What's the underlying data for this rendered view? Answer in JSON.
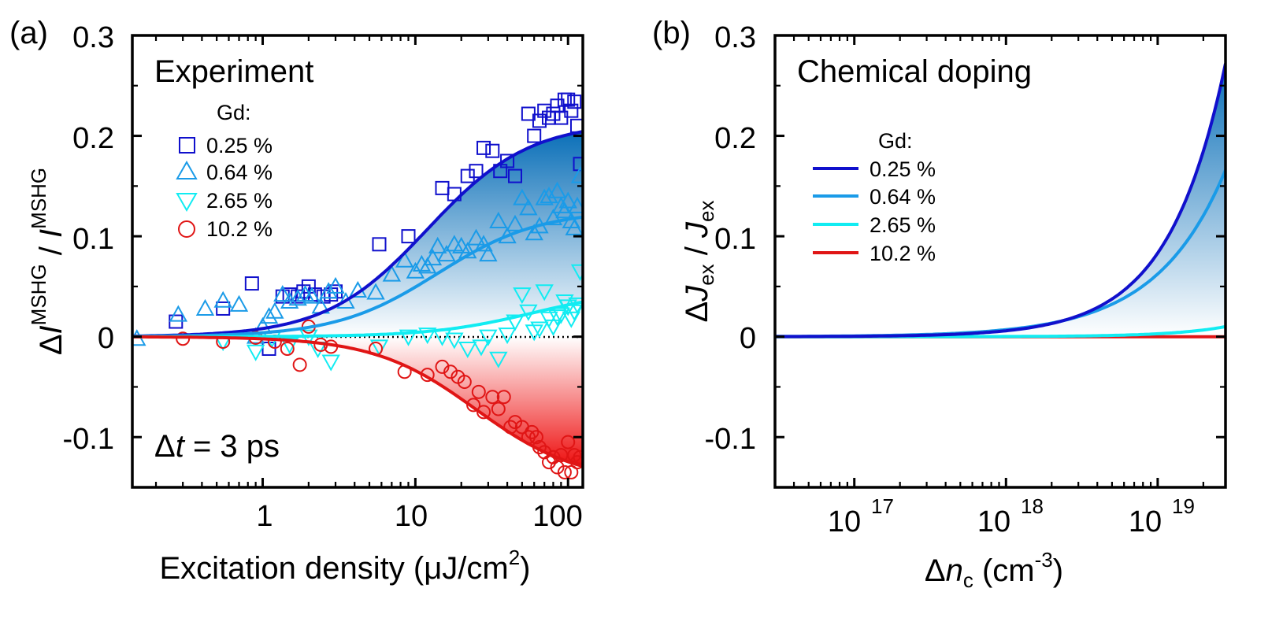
{
  "colors": {
    "gd025": "#1010cc",
    "gd064": "#1a9be8",
    "gd265": "#11ecf2",
    "gd102": "#e01515"
  },
  "chart_data": [
    {
      "panel": "(a)",
      "type": "scatter",
      "title": "Experiment",
      "annotation": "Δt = 3 ps",
      "xlabel": "Excitation density (μJ/cm²)",
      "ylabel": "ΔI MSHG / I MSHG",
      "xscale": "log",
      "xlim": [
        0.14,
        125
      ],
      "ylim": [
        -0.15,
        0.3
      ],
      "xticks": [
        1,
        10,
        100
      ],
      "xtick_labels": [
        "1",
        "10",
        "100"
      ],
      "yticks": [
        -0.1,
        0,
        0.1,
        0.2,
        0.3
      ],
      "ytick_labels": [
        "-0.1",
        "0",
        "0.1",
        "0.2",
        "0.3"
      ],
      "legend_title": "Gd:",
      "legend_position": "top-left",
      "series": [
        {
          "name": "0.25 %",
          "marker": "square",
          "fit_final": 0.214,
          "fit_x0": 12,
          "x": [
            0.27,
            0.55,
            0.85,
            1.1,
            1.35,
            1.5,
            1.7,
            1.85,
            2.0,
            2.2,
            2.5,
            2.8,
            3.0,
            5.8,
            9.0,
            15,
            18,
            22,
            25,
            28,
            32,
            36,
            40,
            45,
            55,
            60,
            65,
            70,
            75,
            80,
            85,
            90,
            95,
            100,
            105,
            110,
            115,
            120
          ],
          "y": [
            0.015,
            0.028,
            0.053,
            -0.012,
            0.04,
            0.042,
            0.04,
            0.045,
            0.05,
            0.042,
            0.04,
            0.042,
            0.045,
            0.092,
            0.1,
            0.148,
            0.142,
            0.16,
            0.165,
            0.188,
            0.185,
            0.165,
            0.175,
            0.16,
            0.222,
            0.2,
            0.215,
            0.225,
            0.218,
            0.222,
            0.23,
            0.218,
            0.236,
            0.236,
            0.225,
            0.234,
            0.21,
            0.172
          ]
        },
        {
          "name": "0.64 %",
          "marker": "triangle-up",
          "fit_final": 0.126,
          "fit_x0": 14,
          "x": [
            0.15,
            0.28,
            0.42,
            0.55,
            0.7,
            0.9,
            1.0,
            1.1,
            1.2,
            1.35,
            1.5,
            1.7,
            1.9,
            2.1,
            2.4,
            2.7,
            3.0,
            3.5,
            4.2,
            5.5,
            7.0,
            8.5,
            10,
            11,
            12,
            13,
            14,
            16,
            18,
            20,
            22,
            25,
            28,
            30,
            35,
            40,
            45,
            50,
            55,
            60,
            65,
            70,
            75,
            80,
            85,
            90,
            95,
            100,
            105,
            110,
            115,
            120
          ],
          "y": [
            -0.002,
            0.022,
            0.028,
            0.036,
            0.032,
            0.0,
            0.01,
            0.02,
            0.025,
            0.042,
            0.035,
            0.038,
            0.042,
            0.04,
            0.03,
            0.045,
            0.05,
            0.035,
            0.046,
            0.044,
            0.062,
            0.076,
            0.065,
            0.072,
            0.07,
            0.078,
            0.09,
            0.082,
            0.092,
            0.09,
            0.085,
            0.098,
            0.092,
            0.082,
            0.115,
            0.1,
            0.112,
            0.138,
            0.128,
            0.103,
            0.11,
            0.138,
            0.14,
            0.118,
            0.145,
            0.13,
            0.125,
            0.135,
            0.115,
            0.108,
            0.13,
            0.16
          ]
        },
        {
          "name": "2.65 %",
          "marker": "triangle-down",
          "fit_final": 0.048,
          "fit_x0": 60,
          "x": [
            0.55,
            0.9,
            1.15,
            1.5,
            2.0,
            2.3,
            2.8,
            5.8,
            9.0,
            12,
            15,
            18,
            22,
            27,
            30,
            35,
            40,
            45,
            50,
            55,
            60,
            65,
            70,
            75,
            80,
            85,
            90,
            95,
            100,
            105,
            110,
            115,
            120
          ],
          "y": [
            -0.005,
            -0.015,
            -0.002,
            -0.008,
            0.0,
            -0.012,
            -0.025,
            -0.01,
            0.0,
            0.002,
            0.0,
            -0.003,
            -0.012,
            -0.01,
            0.0,
            -0.022,
            0.002,
            0.015,
            0.042,
            0.025,
            0.005,
            0.008,
            0.045,
            0.018,
            0.01,
            0.02,
            0.022,
            0.035,
            0.03,
            0.018,
            0.025,
            0.032,
            0.065
          ]
        },
        {
          "name": "10.2 %",
          "marker": "circle",
          "fit_final": -0.145,
          "fit_x0": 25,
          "x": [
            0.3,
            0.55,
            0.9,
            1.2,
            1.45,
            1.75,
            2.0,
            2.4,
            2.8,
            5.5,
            8.5,
            12,
            15,
            17,
            19,
            21,
            24,
            26,
            28,
            32,
            35,
            38,
            42,
            45,
            50,
            55,
            58,
            62,
            65,
            70,
            75,
            80,
            85,
            90,
            95,
            100,
            105,
            110,
            115,
            120
          ],
          "y": [
            -0.002,
            -0.005,
            -0.001,
            -0.005,
            -0.012,
            -0.028,
            0.01,
            -0.008,
            -0.01,
            -0.012,
            -0.035,
            -0.038,
            -0.03,
            -0.035,
            -0.04,
            -0.045,
            -0.068,
            -0.055,
            -0.075,
            -0.06,
            -0.072,
            -0.06,
            -0.09,
            -0.085,
            -0.09,
            -0.1,
            -0.095,
            -0.1,
            -0.11,
            -0.115,
            -0.125,
            -0.12,
            -0.13,
            -0.118,
            -0.135,
            -0.105,
            -0.135,
            -0.118,
            -0.125,
            -0.12
          ]
        }
      ]
    },
    {
      "panel": "(b)",
      "type": "line",
      "title": "Chemical doping",
      "xlabel": "Δn c (cm⁻³)",
      "ylabel": "ΔJ ex / J ex",
      "xscale": "log",
      "xlim": [
        3e+16,
        2.8e+19
      ],
      "ylim": [
        -0.15,
        0.3
      ],
      "xticks": [
        1e+17,
        1e+18,
        1e+19
      ],
      "xtick_labels": [
        "10",
        "10",
        "10"
      ],
      "xtick_exponents": [
        "17",
        "18",
        "19"
      ],
      "yticks": [
        -0.1,
        0,
        0.1,
        0.2,
        0.3
      ],
      "ytick_labels": [
        "-0.1",
        "0",
        "0.1",
        "0.2",
        "0.3"
      ],
      "legend_title": "Gd:",
      "legend_position": "upper-left",
      "series": [
        {
          "name": "0.25 %",
          "end_value": 0.272
        },
        {
          "name": "0.64 %",
          "end_value": 0.166
        },
        {
          "name": "2.65 %",
          "end_value": 0.01
        },
        {
          "name": "10.2 %",
          "end_value": 0.0
        }
      ]
    }
  ]
}
